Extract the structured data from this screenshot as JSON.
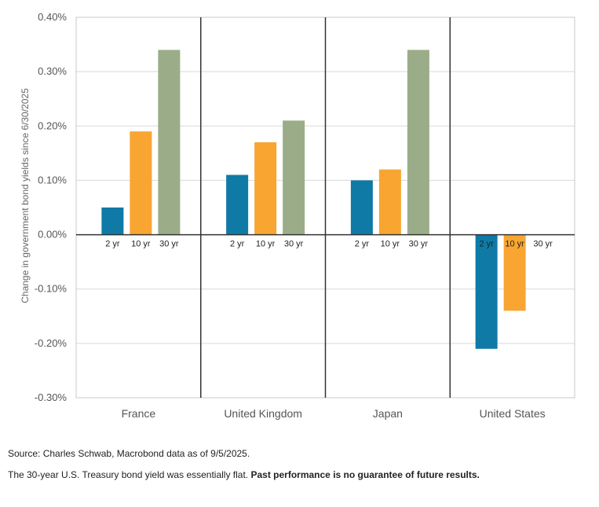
{
  "chart_data": {
    "type": "bar",
    "title": "",
    "ylabel": "Change in government bond yields since 6/30/2025",
    "ylim": [
      -0.3,
      0.4
    ],
    "yticks": [
      0.4,
      0.3,
      0.2,
      0.1,
      0.0,
      -0.1,
      -0.2,
      -0.3
    ],
    "ytick_labels": [
      "0.40%",
      "0.30%",
      "0.20%",
      "0.10%",
      "0.00%",
      "-0.10%",
      "-0.20%",
      "-0.30%"
    ],
    "grid": true,
    "legend": "none",
    "categories": [
      "France",
      "United Kingdom",
      "Japan",
      "United States"
    ],
    "series_labels": [
      "2 yr",
      "10 yr",
      "30 yr"
    ],
    "series_colors": [
      "#0f7aa6",
      "#f8a531",
      "#9aad88"
    ],
    "values": [
      [
        0.05,
        0.19,
        0.34
      ],
      [
        0.11,
        0.17,
        0.21
      ],
      [
        0.1,
        0.12,
        0.34
      ],
      [
        -0.21,
        -0.14,
        0.0
      ]
    ]
  },
  "footer": {
    "source": "Source: Charles Schwab, Macrobond data as of 9/5/2025.",
    "note_plain": "The 30-year U.S. Treasury bond yield was essentially flat. ",
    "note_bold": "Past performance is no guarantee of future results."
  }
}
